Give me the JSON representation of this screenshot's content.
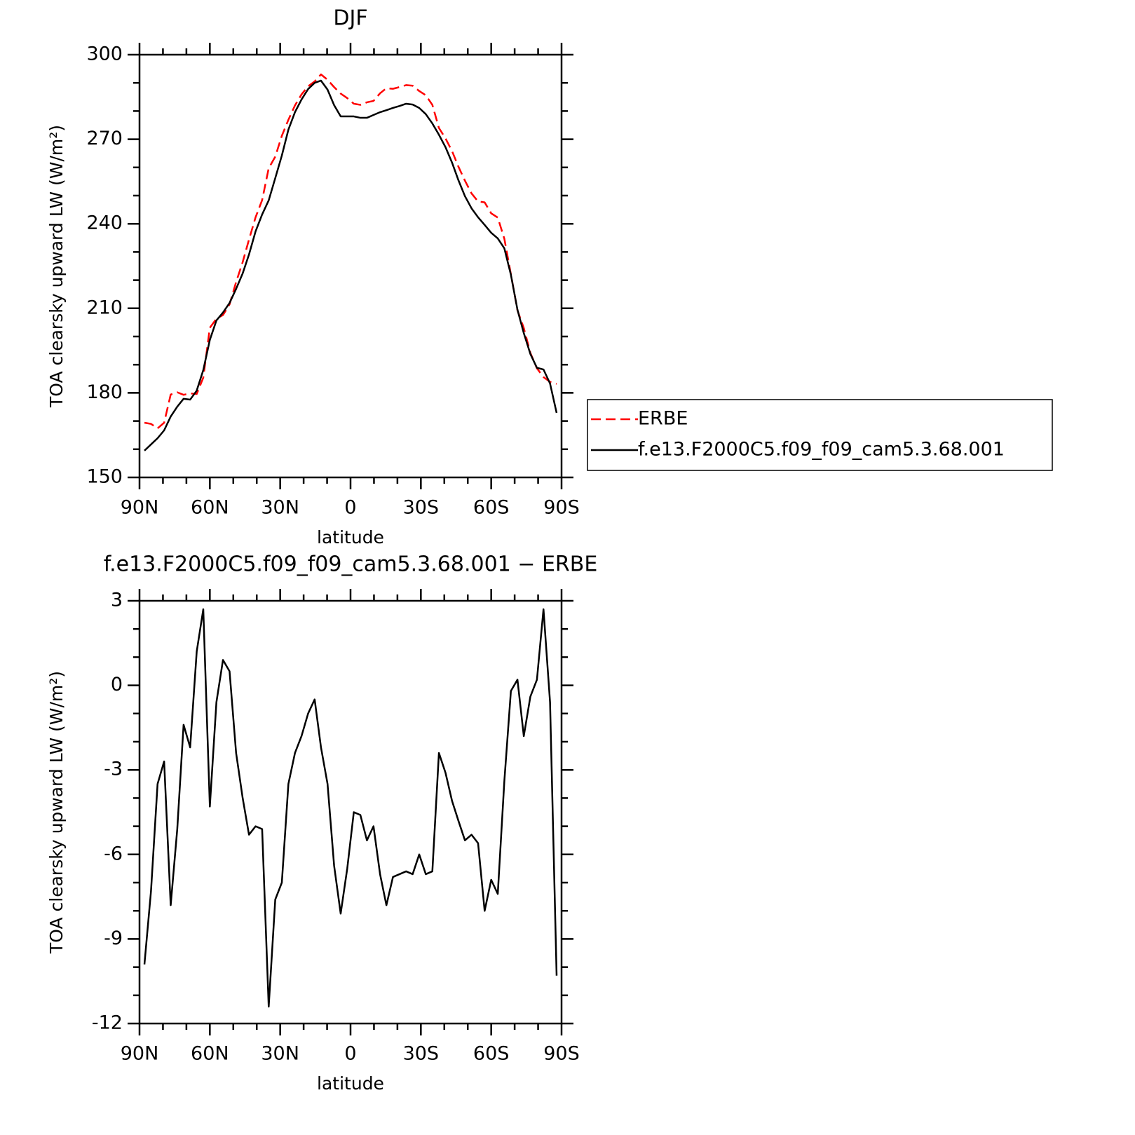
{
  "chart_data": [
    {
      "type": "line",
      "title": "DJF",
      "xlabel": "latitude",
      "ylabel": "TOA clearsky upward LW (W/m²)",
      "x": [
        87.9,
        85.1,
        82.3,
        79.5,
        76.7,
        73.9,
        71.2,
        68.4,
        65.6,
        62.8,
        60.0,
        57.2,
        54.4,
        51.6,
        48.8,
        46.0,
        43.3,
        40.5,
        37.7,
        34.9,
        32.1,
        29.3,
        26.5,
        23.7,
        20.9,
        18.1,
        15.3,
        12.6,
        9.8,
        7.0,
        4.2,
        1.4,
        -1.4,
        -4.2,
        -7.0,
        -9.8,
        -12.6,
        -15.3,
        -18.1,
        -20.9,
        -23.7,
        -26.5,
        -29.3,
        -32.1,
        -34.9,
        -37.7,
        -40.5,
        -43.3,
        -46.0,
        -48.8,
        -51.6,
        -54.4,
        -57.2,
        -60.0,
        -62.8,
        -65.6,
        -68.4,
        -71.2,
        -73.9,
        -76.7,
        -79.5,
        -82.3,
        -85.1,
        -87.9
      ],
      "series": [
        {
          "name": "ERBE",
          "color": "#ff0000",
          "line_style": "dashed",
          "values": [
            169.4,
            169.0,
            167.4,
            169.4,
            179.4,
            180.2,
            179.3,
            179.8,
            179.6,
            185.4,
            203.1,
            206.3,
            207.6,
            211.4,
            219.3,
            226.4,
            234.4,
            242.3,
            248.4,
            259.7,
            263.8,
            271.2,
            276.9,
            282.0,
            285.9,
            288.8,
            290.5,
            293.0,
            291.1,
            288.5,
            286.2,
            284.6,
            282.6,
            282.2,
            283.1,
            283.6,
            286.3,
            288.1,
            287.9,
            288.5,
            289.2,
            289.0,
            287.1,
            285.6,
            282.2,
            274.0,
            270.3,
            265.8,
            260.3,
            255.3,
            250.8,
            247.9,
            247.6,
            243.7,
            242.2,
            234.7,
            222.1,
            209.3,
            203.0,
            194.2,
            188.7,
            185.6,
            183.9,
            183.2
          ]
        },
        {
          "name": "f.e13.F2000C5.f09_f09_cam5.3.68.001",
          "color": "#000000",
          "line_style": "solid",
          "values": [
            159.5,
            161.7,
            163.9,
            166.7,
            171.6,
            175.1,
            177.9,
            177.6,
            180.8,
            188.1,
            198.8,
            205.7,
            208.5,
            211.9,
            216.9,
            222.4,
            229.1,
            237.3,
            243.3,
            248.3,
            256.2,
            264.2,
            273.4,
            279.6,
            284.1,
            287.8,
            290.0,
            290.8,
            287.6,
            282.1,
            278.1,
            278.1,
            278.1,
            277.6,
            277.6,
            278.6,
            279.6,
            280.3,
            281.1,
            281.8,
            282.6,
            282.3,
            281.1,
            278.9,
            275.6,
            271.6,
            267.2,
            261.7,
            255.5,
            249.8,
            245.5,
            242.3,
            239.6,
            236.8,
            234.8,
            231.3,
            221.9,
            209.5,
            201.2,
            193.8,
            188.9,
            188.3,
            183.3,
            172.9
          ]
        }
      ],
      "xlim": [
        90,
        -90
      ],
      "xticks": [
        {
          "value": 90,
          "label": "90N"
        },
        {
          "value": 60,
          "label": "60N"
        },
        {
          "value": 30,
          "label": "30N"
        },
        0,
        {
          "value": -30,
          "label": "30S"
        },
        {
          "value": -60,
          "label": "60S"
        },
        {
          "value": -90,
          "label": "90S"
        }
      ],
      "xminorticks": [
        80,
        70,
        50,
        40,
        20,
        10,
        -10,
        -20,
        -40,
        -50,
        -70,
        -80
      ],
      "ylim": [
        150,
        300
      ],
      "yticks": [
        150,
        180,
        210,
        240,
        270,
        300
      ],
      "yminorticks": [
        160,
        170,
        190,
        200,
        220,
        230,
        250,
        260,
        280,
        290
      ],
      "legend": "outside-right"
    },
    {
      "type": "line",
      "title": "f.e13.F2000C5.f09_f09_cam5.3.68.001 − ERBE",
      "xlabel": "latitude",
      "ylabel": "TOA clearsky upward LW (W/m²)",
      "x": [
        87.9,
        85.1,
        82.3,
        79.5,
        76.7,
        73.9,
        71.2,
        68.4,
        65.6,
        62.8,
        60.0,
        57.2,
        54.4,
        51.6,
        48.8,
        46.0,
        43.3,
        40.5,
        37.7,
        34.9,
        32.1,
        29.3,
        26.5,
        23.7,
        20.9,
        18.1,
        15.3,
        12.6,
        9.8,
        7.0,
        4.2,
        1.4,
        -1.4,
        -4.2,
        -7.0,
        -9.8,
        -12.6,
        -15.3,
        -18.1,
        -20.9,
        -23.7,
        -26.5,
        -29.3,
        -32.1,
        -34.9,
        -37.7,
        -40.5,
        -43.3,
        -46.0,
        -48.8,
        -51.6,
        -54.4,
        -57.2,
        -60.0,
        -62.8,
        -65.6,
        -68.4,
        -71.2,
        -73.9,
        -76.7,
        -79.5,
        -82.3,
        -85.1,
        -87.9
      ],
      "series": [
        {
          "color": "#000000",
          "line_style": "solid",
          "values": [
            -9.9,
            -7.3,
            -3.5,
            -2.7,
            -7.8,
            -5.1,
            -1.4,
            -2.2,
            1.2,
            2.7,
            -4.3,
            -0.6,
            0.9,
            0.5,
            -2.4,
            -4.0,
            -5.3,
            -5.0,
            -5.1,
            -11.4,
            -7.6,
            -7.0,
            -3.5,
            -2.4,
            -1.8,
            -1.0,
            -0.5,
            -2.2,
            -3.5,
            -6.4,
            -8.1,
            -6.5,
            -4.5,
            -4.6,
            -5.5,
            -5.0,
            -6.7,
            -7.8,
            -6.8,
            -6.7,
            -6.6,
            -6.7,
            -6.0,
            -6.7,
            -6.6,
            -2.4,
            -3.1,
            -4.1,
            -4.8,
            -5.5,
            -5.3,
            -5.6,
            -8.0,
            -6.9,
            -7.4,
            -3.4,
            -0.2,
            0.2,
            -1.8,
            -0.4,
            0.2,
            2.7,
            -0.6,
            -10.3
          ]
        }
      ],
      "xlim": [
        90,
        -90
      ],
      "xticks": [
        {
          "value": 90,
          "label": "90N"
        },
        {
          "value": 60,
          "label": "60N"
        },
        {
          "value": 30,
          "label": "30N"
        },
        0,
        {
          "value": -30,
          "label": "30S"
        },
        {
          "value": -60,
          "label": "60S"
        },
        {
          "value": -90,
          "label": "90S"
        }
      ],
      "xminorticks": [
        80,
        70,
        50,
        40,
        20,
        10,
        -10,
        -20,
        -40,
        -50,
        -70,
        -80
      ],
      "ylim": [
        -12,
        3
      ],
      "yticks": [
        -12,
        -9,
        -6,
        -3,
        0,
        3
      ],
      "yminorticks": [
        -11,
        -10,
        -8,
        -7,
        -5,
        -4,
        -2,
        -1,
        1,
        2
      ]
    }
  ]
}
